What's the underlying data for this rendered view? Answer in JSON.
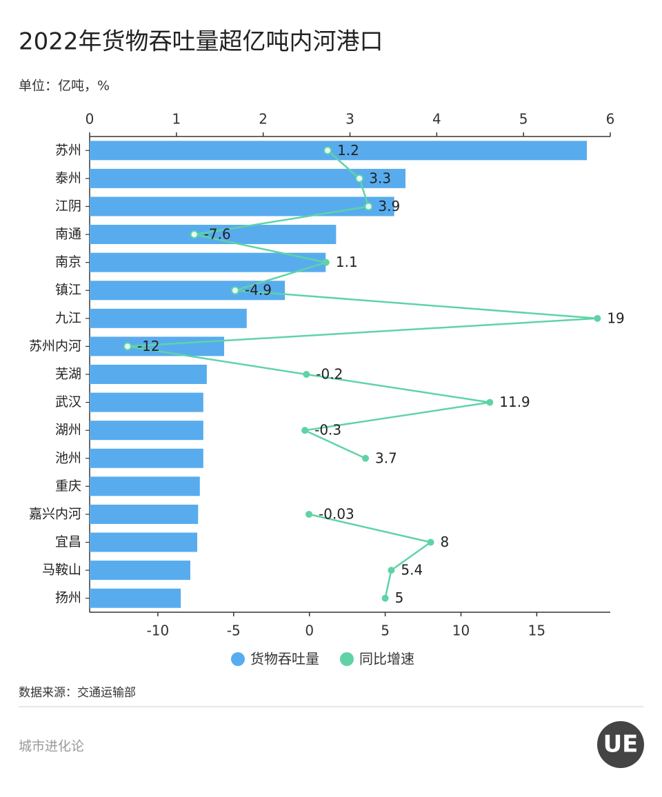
{
  "chart_data": {
    "type": "bar",
    "title": "2022年货物吞吐量超亿吨内河港口",
    "subtitle": "单位：亿吨，%",
    "categories": [
      "苏州",
      "泰州",
      "江阴",
      "南通",
      "南京",
      "镇江",
      "九江",
      "苏州内河",
      "芜湖",
      "武汉",
      "湖州",
      "池州",
      "重庆",
      "嘉兴内河",
      "宜昌",
      "马鞍山",
      "扬州"
    ],
    "series": [
      {
        "name": "货物吞吐量",
        "color": "#58acee",
        "values": [
          5.73,
          3.64,
          3.51,
          2.84,
          2.72,
          2.25,
          1.81,
          1.55,
          1.35,
          1.31,
          1.31,
          1.31,
          1.27,
          1.25,
          1.24,
          1.16,
          1.05
        ]
      },
      {
        "name": "同比增速",
        "color": "#5fd3a6",
        "type": "line",
        "axis": "x2",
        "values": [
          1.2,
          3.3,
          3.9,
          -7.6,
          1.1,
          -4.9,
          19,
          -12,
          -0.2,
          11.9,
          -0.3,
          3.7,
          null,
          -0.03,
          8,
          5.4,
          5
        ]
      }
    ],
    "xlim": [
      0,
      6
    ],
    "xticks": [
      0,
      1,
      2,
      3,
      4,
      5,
      6
    ],
    "x2lim": [
      -14.5,
      19.85
    ],
    "x2ticks": [
      -10,
      -5,
      0,
      5,
      10,
      15
    ],
    "legend": "bottom",
    "source": "数据来源：交通运输部",
    "footer": "城市进化论",
    "logo": "UE"
  }
}
